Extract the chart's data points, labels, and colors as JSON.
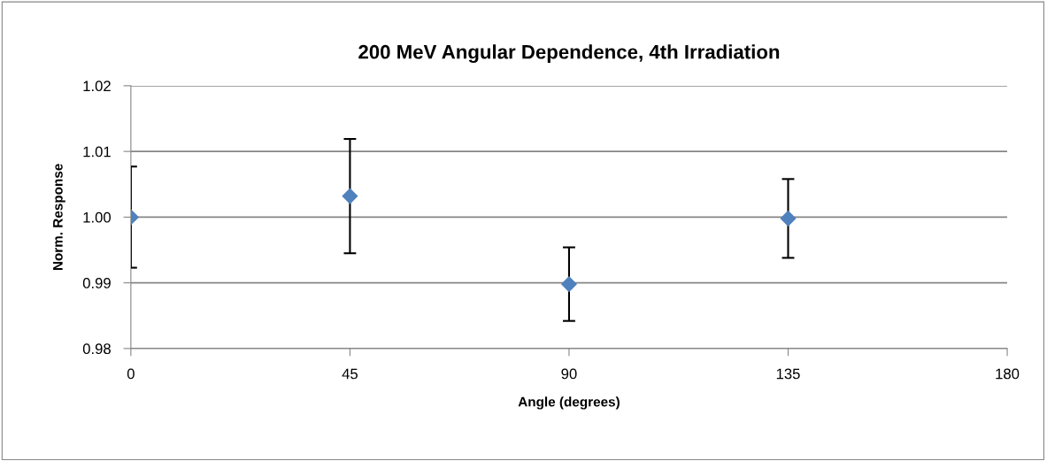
{
  "chart_data": {
    "type": "scatter",
    "title": "200 MeV Angular Dependence, 4th Irradiation",
    "xlabel": "Angle (degrees)",
    "ylabel": "Norm. Response",
    "x": [
      0,
      45,
      90,
      135
    ],
    "series": [
      {
        "color": "#4f81bd",
        "values": [
          1.0,
          1.0032,
          0.9898,
          0.9998
        ],
        "errors": [
          0.0077,
          0.0087,
          0.0056,
          0.006
        ]
      }
    ],
    "xlim": [
      0,
      180
    ],
    "xticks": [
      0,
      45,
      90,
      135,
      180
    ],
    "ylim": [
      0.98,
      1.02
    ],
    "yticks": [
      {
        "value": 0.98,
        "label": "0.98"
      },
      {
        "value": 0.99,
        "label": "0.99"
      },
      {
        "value": 1.0,
        "label": "1.00"
      },
      {
        "value": 1.01,
        "label": "1.01"
      },
      {
        "value": 1.02,
        "label": "1.02"
      }
    ],
    "grid": "y",
    "marker": "diamond",
    "legend": false
  }
}
